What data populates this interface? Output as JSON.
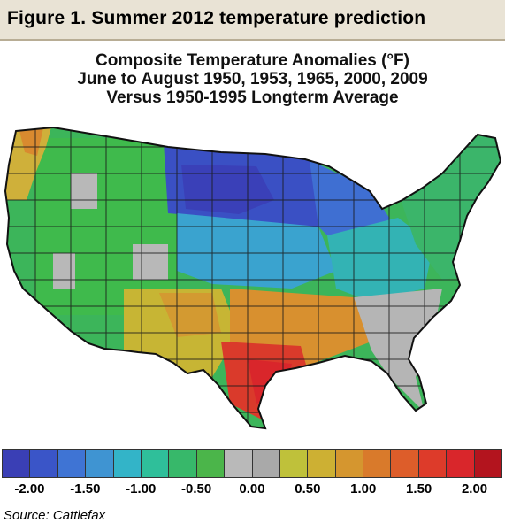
{
  "figure": {
    "heading": "Figure 1. Summer 2012 temperature prediction"
  },
  "map": {
    "title_lines": [
      "Composite Temperature Anomalies (°F)",
      "June to August 1950, 1953, 1965, 2000, 2009",
      "Versus 1950-1995 Longterm Average"
    ],
    "region": "Contiguous United States climate divisions",
    "regions": [
      {
        "name": "northern-plains-upper-midwest",
        "anomaly": -1.75
      },
      {
        "name": "great-lakes",
        "anomaly": -1.25
      },
      {
        "name": "central-plains",
        "anomaly": -1.0
      },
      {
        "name": "ohio-valley",
        "anomaly": -0.75
      },
      {
        "name": "northeast",
        "anomaly": -0.5
      },
      {
        "name": "pacific-northwest-coast",
        "anomaly": 0.75
      },
      {
        "name": "west-interior",
        "anomaly": -0.5
      },
      {
        "name": "southwest",
        "anomaly": 0.75
      },
      {
        "name": "texas",
        "anomaly": 1.75
      },
      {
        "name": "gulf-coast",
        "anomaly": 1.0
      },
      {
        "name": "southeast",
        "anomaly": 0.0
      }
    ]
  },
  "legend": {
    "colors": [
      "#3a3fb5",
      "#3a55c8",
      "#3f74d4",
      "#3f94d2",
      "#33b4c8",
      "#2fbf9a",
      "#37b86a",
      "#4bb54a",
      "#b9b9b9",
      "#a9a9a9",
      "#bfc13a",
      "#cdb033",
      "#d5962f",
      "#d97a2b",
      "#dd5d2a",
      "#dd3b2a",
      "#d9262b",
      "#b3141e"
    ],
    "tick_labels": [
      "-2.00",
      "-1.50",
      "-1.00",
      "-0.50",
      "0.00",
      "0.50",
      "1.00",
      "1.50",
      "2.00"
    ],
    "min": -2.0,
    "max": 2.0
  },
  "source": "Source: Cattlefax"
}
